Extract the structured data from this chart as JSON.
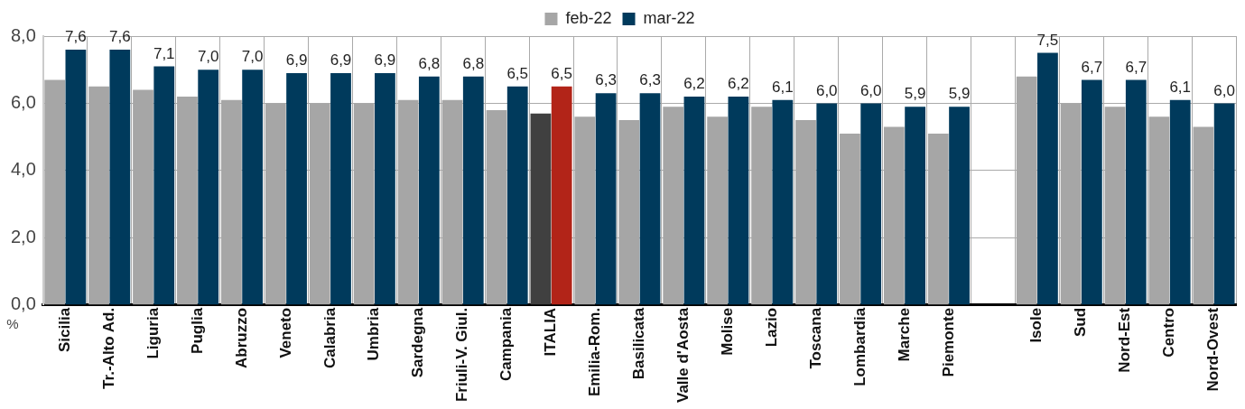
{
  "chart_data": {
    "type": "bar",
    "categories": [
      "Sicilia",
      "Tr.-Alto Ad.",
      "Liguria",
      "Puglia",
      "Abruzzo",
      "Veneto",
      "Calabria",
      "Umbria",
      "Sardegna",
      "Friuli-V. Giul.",
      "Campania",
      "ITALIA",
      "Emilia-Rom.",
      "Basilicata",
      "Valle d'Aosta",
      "Molise",
      "Lazio",
      "Toscana",
      "Lombardia",
      "Marche",
      "Piemonte",
      null,
      "Isole",
      "Sud",
      "Nord-Est",
      "Centro",
      "Nord-Ovest"
    ],
    "series": [
      {
        "name": "feb-22",
        "color": "#a6a6a6",
        "colors": [
          "#a6a6a6",
          "#a6a6a6",
          "#a6a6a6",
          "#a6a6a6",
          "#a6a6a6",
          "#a6a6a6",
          "#a6a6a6",
          "#a6a6a6",
          "#a6a6a6",
          "#a6a6a6",
          "#a6a6a6",
          "#404040",
          "#a6a6a6",
          "#a6a6a6",
          "#a6a6a6",
          "#a6a6a6",
          "#a6a6a6",
          "#a6a6a6",
          "#a6a6a6",
          "#a6a6a6",
          "#a6a6a6",
          "#a6a6a6",
          "#a6a6a6",
          "#a6a6a6",
          "#a6a6a6",
          "#a6a6a6",
          "#a6a6a6"
        ],
        "values": [
          6.7,
          6.5,
          6.4,
          6.2,
          6.1,
          6.0,
          6.0,
          6.0,
          6.1,
          6.1,
          5.8,
          5.7,
          5.6,
          5.5,
          5.9,
          5.6,
          5.9,
          5.5,
          5.1,
          5.3,
          5.1,
          null,
          6.8,
          6.0,
          5.9,
          5.6,
          5.3
        ]
      },
      {
        "name": "mar-22",
        "color": "#003a5c",
        "colors": [
          "#003a5c",
          "#003a5c",
          "#003a5c",
          "#003a5c",
          "#003a5c",
          "#003a5c",
          "#003a5c",
          "#003a5c",
          "#003a5c",
          "#003a5c",
          "#003a5c",
          "#b22418",
          "#003a5c",
          "#003a5c",
          "#003a5c",
          "#003a5c",
          "#003a5c",
          "#003a5c",
          "#003a5c",
          "#003a5c",
          "#003a5c",
          "#003a5c",
          "#003a5c",
          "#003a5c",
          "#003a5c",
          "#003a5c",
          "#003a5c"
        ],
        "values": [
          7.6,
          7.6,
          7.1,
          7.0,
          7.0,
          6.9,
          6.9,
          6.9,
          6.8,
          6.8,
          6.5,
          6.5,
          6.3,
          6.3,
          6.2,
          6.2,
          6.1,
          6.0,
          6.0,
          5.9,
          5.9,
          null,
          7.5,
          6.7,
          6.7,
          6.1,
          6.0
        ],
        "value_labels": [
          "7,6",
          "7,6",
          "7,1",
          "7,0",
          "7,0",
          "6,9",
          "6,9",
          "6,9",
          "6,8",
          "6,8",
          "6,5",
          "6,5",
          "6,3",
          "6,3",
          "6,2",
          "6,2",
          "6,1",
          "6,0",
          "6,0",
          "5,9",
          "5,9",
          null,
          "7,5",
          "6,7",
          "6,7",
          "6,1",
          "6,0"
        ]
      }
    ],
    "ylim": [
      0,
      8
    ],
    "yticks": [
      {
        "value": 0,
        "label": "0,0"
      },
      {
        "value": 2,
        "label": "2,0"
      },
      {
        "value": 4,
        "label": "4,0"
      },
      {
        "value": 6,
        "label": "6,0"
      },
      {
        "value": 8,
        "label": "8,0"
      }
    ],
    "grid": true,
    "legend": "top",
    "annotations": [
      "%"
    ]
  }
}
